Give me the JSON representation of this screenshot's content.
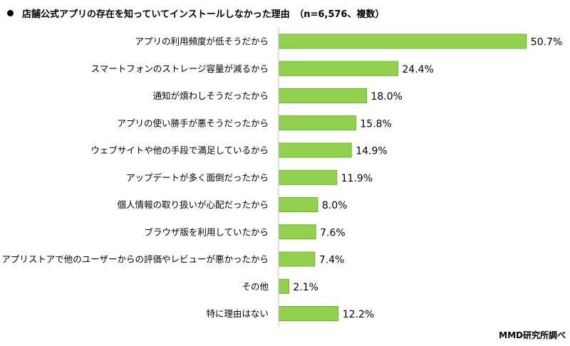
{
  "chart_data": {
    "type": "bar",
    "orientation": "horizontal",
    "title": "店舗公式アプリの存在を知っていてインストールしなかった理由　（n=6,576、複数）",
    "categories": [
      "アプリの利用頻度が低そうだから",
      "スマートフォンのストレージ容量が減るから",
      "通知が煩わしそうだったから",
      "アプリの使い勝手が悪そうだったから",
      "ウェブサイトや他の手段で満足しているから",
      "アップデートが多く面倒だったから",
      "個人情報の取り扱いが心配だったから",
      "ブラウザ版を利用していたから",
      "アプリストアで他のユーザーからの評価やレビューが悪かったから",
      "その他",
      "特に理由はない"
    ],
    "values": [
      50.7,
      24.4,
      18.0,
      15.8,
      14.9,
      11.9,
      8.0,
      7.6,
      7.4,
      2.1,
      12.2
    ],
    "value_labels": [
      "50.7%",
      "24.4%",
      "18.0%",
      "15.8%",
      "14.9%",
      "11.9%",
      "8.0%",
      "7.6%",
      "7.4%",
      "2.1%",
      "12.2%"
    ],
    "unit": "%",
    "xlim": [
      0,
      55
    ],
    "grid": false,
    "bar_color": "#92d050",
    "bar_border_color": "#6cb52a"
  },
  "source": "MMD研究所調べ"
}
